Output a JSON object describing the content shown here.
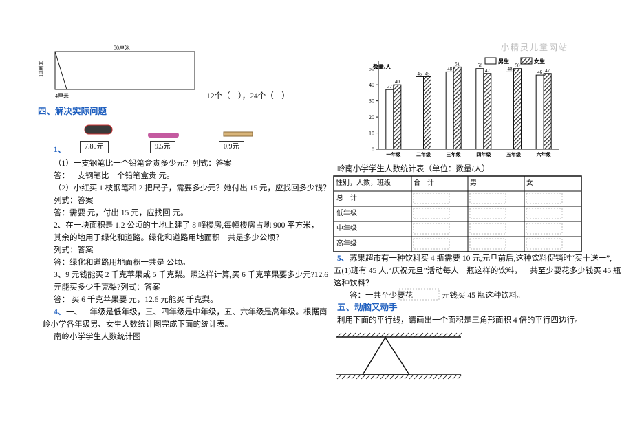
{
  "figure": {
    "width_label": "50厘米",
    "height_label": "10厘米",
    "base_label": "4厘米",
    "answer": "12个（　），24个（　）"
  },
  "section4": {
    "title": "四、解决实际问题",
    "prices": [
      "7.80元",
      "9.5元",
      "0.9元"
    ],
    "q1_num": "1、",
    "lines": [
      "（1）一支钢笔比一个铅笔盒贵多少元？列式：答案",
      "答：一支钢笔比一个铅笔盒贵  元。",
      "（2）小红买 1 枝钢笔和 2 把尺子，需要多少元？她付出 15 元，应找回多少钱？",
      "列式：答案",
      "答：需要  元，付出 15 元，应找回  元。",
      "2、在一块面积是 1.2 公顷的土地上建了 8 幢楼房,每幢楼房占地 900 平方米，",
      "其余的地用于绿化和道路。绿化和道路用地面积一共是多少公顷？",
      "列式：答案",
      "答：绿化和道路用地面积一共是  公顷。",
      "3、9 元钱能买 2 千克苹果或 5 千克梨。照这样计算,买 6 千克苹果要多少元?12.6",
      "元能买多少千克梨?列式：答案",
      "答：  买 6 千克苹果要  元，12.6 元能买  千克梨。"
    ],
    "q4_num": "4、",
    "q4_lines": [
      "一、二年级是低年级，三、四年级是中年级，五、六年级是高年级。根据南",
      "岭小学各年级男、女生人数统计图完成下面的统计表。"
    ],
    "chart_caption": "南岭小学学生人数统计图"
  },
  "watermark": "小精灵儿童网站",
  "chart": {
    "type": "bar",
    "y_label": "数量/人",
    "categories": [
      "一年级",
      "二年级",
      "三年级",
      "四年级",
      "五年级",
      "六年级"
    ],
    "series": [
      {
        "name": "男生",
        "color": "#ffffff",
        "values": [
          37,
          45,
          48,
          50,
          48,
          46
        ]
      },
      {
        "name": "女生",
        "color": "#333333",
        "values": [
          40,
          45,
          51,
          47,
          50,
          47
        ]
      }
    ],
    "ylim": [
      0,
      55
    ],
    "yticks": [
      0,
      10,
      20,
      30,
      40,
      50
    ]
  },
  "table": {
    "title": "岭南小学学生人数统计表（单位：数量/人）",
    "header": [
      "性别，人数，班级",
      "合　计",
      "男",
      "女"
    ],
    "rows": [
      "总　计",
      "低年级",
      "中年级",
      "高年级"
    ]
  },
  "q5": {
    "num": "5、",
    "lines": [
      "苏果超市有一种饮料买 4 瓶需要 10 元,元旦前后,这种饮料促销时“买十送一”,",
      "五(1)班有 45 人,“庆祝元旦”活动每人一瓶这样的饮料，一共至少要花多少钱买 45 瓶",
      "这种饮料？"
    ],
    "answer_start": "答：一共至少要花",
    "answer_end": "元钱买 45 瓶这种饮料。"
  },
  "section5": {
    "title": "五、动脑又动手",
    "text": "利用下面的平行线，请画出一个面积是三角形面积 4 倍的平行四边行。"
  }
}
